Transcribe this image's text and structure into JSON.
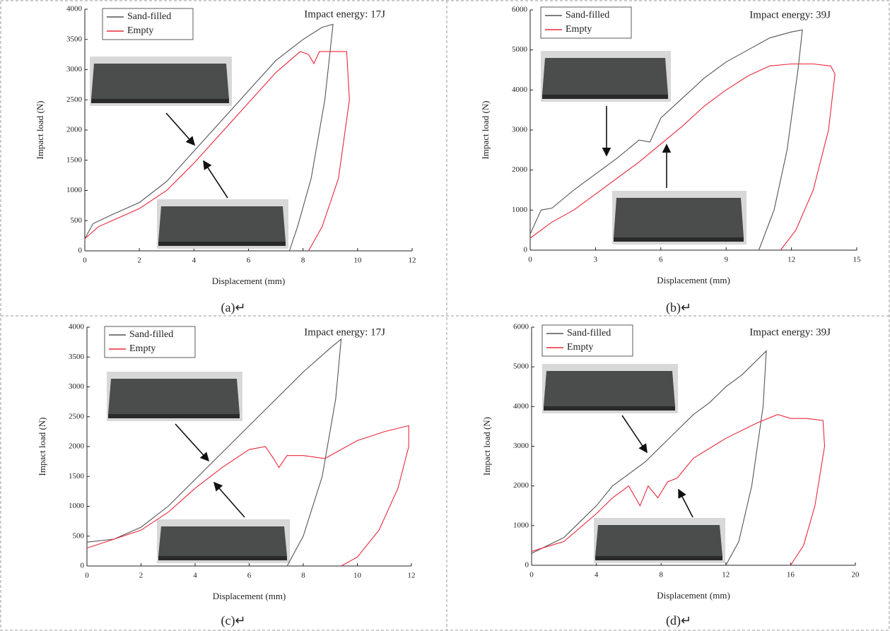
{
  "chart_data": [
    {
      "type": "line",
      "title": "Impact energy: 17J",
      "xlabel": "Displacement (mm)",
      "ylabel": "Impact load (N)",
      "caption": "(a)↵",
      "xlim": [
        0,
        12
      ],
      "ylim": [
        0,
        4000
      ],
      "xticks": [
        0,
        2,
        4,
        6,
        8,
        10,
        12
      ],
      "yticks": [
        0,
        500,
        1000,
        1500,
        2000,
        2500,
        3000,
        3500,
        4000
      ],
      "series": [
        {
          "name": "Sand-filled",
          "color": "#555555",
          "x": [
            0,
            0.3,
            1,
            2,
            3,
            4,
            5,
            6,
            7,
            8,
            8.7,
            9.1,
            8.8,
            8.3,
            7.8,
            7.5
          ],
          "values": [
            200,
            450,
            600,
            800,
            1150,
            1650,
            2150,
            2650,
            3150,
            3500,
            3700,
            3750,
            2500,
            1200,
            400,
            0
          ]
        },
        {
          "name": "Empty",
          "color": "#e8283a",
          "x": [
            0,
            0.5,
            1,
            2,
            3,
            4,
            5,
            6,
            7,
            7.9,
            8.2,
            8.4,
            8.6,
            9.2,
            9.6,
            9.7,
            9.3,
            8.7,
            8.2
          ],
          "values": [
            200,
            400,
            500,
            700,
            1000,
            1450,
            1950,
            2450,
            2950,
            3300,
            3250,
            3100,
            3300,
            3300,
            3300,
            2500,
            1200,
            400,
            0
          ]
        }
      ]
    },
    {
      "type": "line",
      "title": "Impact energy: 39J",
      "xlabel": "Displacement (mm)",
      "ylabel": "Impact load (N)",
      "caption": "(b)↵",
      "xlim": [
        0,
        15
      ],
      "ylim": [
        0,
        6000
      ],
      "xticks": [
        0,
        3,
        6,
        9,
        12,
        15
      ],
      "yticks": [
        0,
        1000,
        2000,
        3000,
        4000,
        5000,
        6000
      ],
      "series": [
        {
          "name": "Sand-filled",
          "color": "#555555",
          "x": [
            0,
            0.5,
            1,
            2,
            3,
            4,
            5,
            5.5,
            6,
            7,
            8,
            9,
            10,
            11,
            12,
            12.5,
            12.3,
            11.8,
            11.2,
            10.5
          ],
          "values": [
            400,
            1000,
            1050,
            1500,
            1900,
            2300,
            2750,
            2700,
            3300,
            3800,
            4300,
            4700,
            5000,
            5300,
            5450,
            5500,
            4500,
            2500,
            1000,
            0
          ]
        },
        {
          "name": "Empty",
          "color": "#e8283a",
          "x": [
            0,
            1,
            2,
            3,
            4,
            5,
            6,
            7,
            8,
            9,
            10,
            11,
            12,
            13,
            13.8,
            14,
            13.7,
            13,
            12.2,
            11.5
          ],
          "values": [
            300,
            700,
            1000,
            1400,
            1800,
            2200,
            2650,
            3100,
            3600,
            4000,
            4350,
            4600,
            4650,
            4650,
            4600,
            4400,
            3000,
            1500,
            500,
            0
          ]
        }
      ]
    },
    {
      "type": "line",
      "title": "Impact energy: 17J",
      "xlabel": "Displacement (mm)",
      "ylabel": "Impact load (N)",
      "caption": "(c)↵",
      "xlim": [
        0,
        12
      ],
      "ylim": [
        0,
        4000
      ],
      "xticks": [
        0,
        2,
        4,
        6,
        8,
        10,
        12
      ],
      "yticks": [
        0,
        500,
        1000,
        1500,
        2000,
        2500,
        3000,
        3500,
        4000
      ],
      "series": [
        {
          "name": "Sand-filled",
          "color": "#555555",
          "x": [
            0,
            1,
            2,
            3,
            4,
            5,
            6,
            7,
            8,
            9,
            9.4,
            9.2,
            8.7,
            8,
            7.4
          ],
          "values": [
            400,
            450,
            650,
            1000,
            1450,
            1900,
            2350,
            2800,
            3250,
            3650,
            3800,
            2800,
            1500,
            500,
            0
          ]
        },
        {
          "name": "Empty",
          "color": "#e8283a",
          "x": [
            0,
            1,
            2,
            3,
            4,
            5,
            6,
            6.6,
            6.9,
            7.1,
            7.4,
            8,
            8.8,
            10,
            11,
            11.9,
            11.9,
            11.5,
            10.8,
            10,
            9.4
          ],
          "values": [
            300,
            450,
            600,
            900,
            1300,
            1650,
            1950,
            2000,
            1800,
            1650,
            1850,
            1850,
            1800,
            2100,
            2250,
            2350,
            2000,
            1300,
            600,
            150,
            0
          ]
        }
      ]
    },
    {
      "type": "line",
      "title": "Impact energy: 39J",
      "xlabel": "Displacement (mm)",
      "ylabel": "Impact load (N)",
      "caption": "(d)↵",
      "xlim": [
        0,
        20
      ],
      "ylim": [
        0,
        6000
      ],
      "xticks": [
        0,
        4,
        8,
        12,
        16,
        20
      ],
      "yticks": [
        0,
        1000,
        2000,
        3000,
        4000,
        5000,
        6000
      ],
      "series": [
        {
          "name": "Sand-filled",
          "color": "#555555",
          "x": [
            0,
            1,
            2,
            3,
            4,
            5,
            6,
            7,
            8,
            9,
            10,
            11,
            12,
            13,
            14,
            14.5,
            14.3,
            13.6,
            12.8,
            12
          ],
          "values": [
            300,
            500,
            700,
            1100,
            1500,
            2000,
            2300,
            2600,
            3000,
            3400,
            3800,
            4100,
            4500,
            4800,
            5200,
            5400,
            4000,
            2000,
            600,
            0
          ]
        },
        {
          "name": "Empty",
          "color": "#e8283a",
          "x": [
            0,
            2,
            4,
            5,
            6,
            6.7,
            7.2,
            7.8,
            8.4,
            9,
            10,
            12,
            14,
            15.2,
            16,
            17,
            18,
            18.1,
            17.5,
            16.8,
            16
          ],
          "values": [
            350,
            600,
            1300,
            1700,
            2000,
            1500,
            2000,
            1700,
            2100,
            2200,
            2700,
            3200,
            3600,
            3800,
            3700,
            3700,
            3650,
            3000,
            1500,
            500,
            0
          ]
        }
      ]
    }
  ]
}
